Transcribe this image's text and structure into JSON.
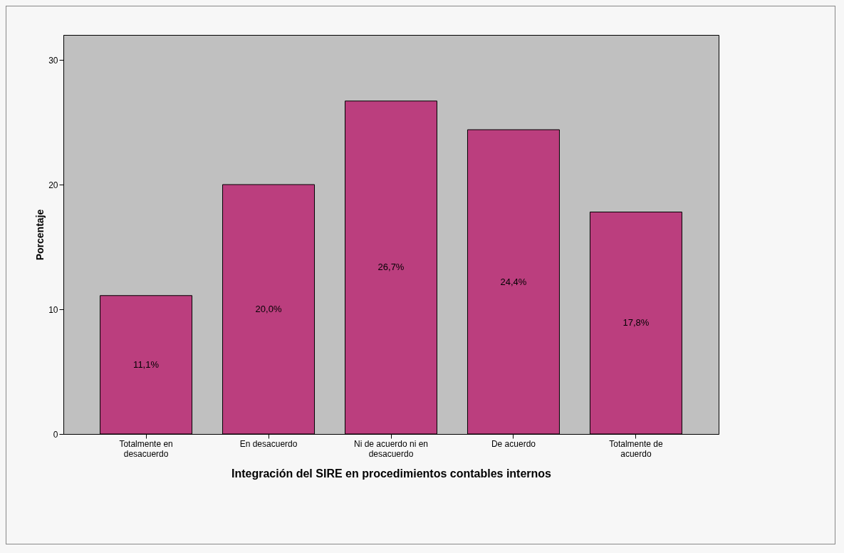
{
  "chart_data": {
    "type": "bar",
    "xlabel": "Integración del SIRE en procedimientos contables internos",
    "ylabel": "Porcentaje",
    "categories": [
      "Totalmente en desacuerdo",
      "En desacuerdo",
      "Ni de acuerdo ni en desacuerdo",
      "De acuerdo",
      "Totalmente de acuerdo"
    ],
    "values": [
      11.1,
      20.0,
      26.7,
      24.4,
      17.8
    ],
    "value_labels": [
      "11,1%",
      "20,0%",
      "26,7%",
      "24,4%",
      "17,8%"
    ],
    "color": "#bb3e7e",
    "ylim": [
      0,
      32
    ],
    "yticks": [
      0,
      10,
      20,
      30
    ],
    "grid": false
  }
}
